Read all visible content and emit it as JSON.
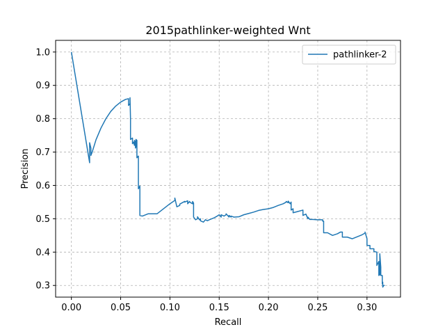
{
  "chart_data": {
    "type": "line",
    "title": "2015pathlinker-weighted Wnt",
    "xlabel": "Recall",
    "ylabel": "Precision",
    "xlim": [
      -0.016,
      0.334
    ],
    "ylim": [
      0.265,
      1.035
    ],
    "xticks": [
      0.0,
      0.05,
      0.1,
      0.15,
      0.2,
      0.25,
      0.3
    ],
    "xtick_labels": [
      "0.00",
      "0.05",
      "0.10",
      "0.15",
      "0.20",
      "0.25",
      "0.30"
    ],
    "yticks": [
      0.3,
      0.4,
      0.5,
      0.6,
      0.7,
      0.8,
      0.9,
      1.0
    ],
    "ytick_labels": [
      "0.3",
      "0.4",
      "0.5",
      "0.6",
      "0.7",
      "0.8",
      "0.9",
      "1.0"
    ],
    "grid": true,
    "legend_position": "top-right",
    "series": [
      {
        "name": "pathlinker-2",
        "color": "#1f77b4",
        "x": [
          0.0,
          0.0185,
          0.0185,
          0.0198,
          0.0198,
          0.0211,
          0.025,
          0.03,
          0.035,
          0.04,
          0.045,
          0.05,
          0.055,
          0.058,
          0.058,
          0.0595,
          0.0595,
          0.06,
          0.06,
          0.062,
          0.062,
          0.063,
          0.064,
          0.064,
          0.065,
          0.065,
          0.0655,
          0.0655,
          0.0665,
          0.0665,
          0.068,
          0.068,
          0.0695,
          0.0695,
          0.072,
          0.078,
          0.087,
          0.1,
          0.105,
          0.105,
          0.107,
          0.11,
          0.11,
          0.115,
          0.115,
          0.118,
          0.118,
          0.12,
          0.12,
          0.123,
          0.123,
          0.124,
          0.124,
          0.126,
          0.128,
          0.128,
          0.13,
          0.131,
          0.131,
          0.134,
          0.136,
          0.138,
          0.14,
          0.145,
          0.148,
          0.15,
          0.152,
          0.152,
          0.155,
          0.157,
          0.157,
          0.16,
          0.16,
          0.162,
          0.162,
          0.165,
          0.17,
          0.175,
          0.18,
          0.185,
          0.19,
          0.195,
          0.2,
          0.205,
          0.21,
          0.215,
          0.218,
          0.218,
          0.22,
          0.22,
          0.222,
          0.223,
          0.223,
          0.225,
          0.225,
          0.23,
          0.235,
          0.235,
          0.238,
          0.24,
          0.24,
          0.242,
          0.245,
          0.25,
          0.255,
          0.255,
          0.256,
          0.256,
          0.26,
          0.265,
          0.27,
          0.273,
          0.275,
          0.275,
          0.28,
          0.285,
          0.29,
          0.295,
          0.298,
          0.298,
          0.3,
          0.3,
          0.303,
          0.303,
          0.307,
          0.307,
          0.31,
          0.31,
          0.312,
          0.312,
          0.313,
          0.313,
          0.314,
          0.314,
          0.3155,
          0.3155,
          0.316,
          0.316,
          0.317,
          0.318
        ],
        "y": [
          1.0,
          0.668,
          0.728,
          0.712,
          0.69,
          0.7,
          0.737,
          0.772,
          0.8,
          0.822,
          0.838,
          0.85,
          0.858,
          0.86,
          0.84,
          0.845,
          0.863,
          0.8,
          0.738,
          0.742,
          0.725,
          0.73,
          0.72,
          0.735,
          0.73,
          0.712,
          0.715,
          0.738,
          0.735,
          0.683,
          0.688,
          0.59,
          0.598,
          0.51,
          0.508,
          0.515,
          0.515,
          0.545,
          0.555,
          0.562,
          0.536,
          0.54,
          0.544,
          0.552,
          0.55,
          0.554,
          0.545,
          0.552,
          0.55,
          0.545,
          0.552,
          0.547,
          0.505,
          0.497,
          0.5,
          0.506,
          0.497,
          0.5,
          0.494,
          0.49,
          0.497,
          0.494,
          0.497,
          0.503,
          0.508,
          0.512,
          0.505,
          0.512,
          0.508,
          0.512,
          0.515,
          0.505,
          0.51,
          0.505,
          0.508,
          0.505,
          0.506,
          0.512,
          0.516,
          0.52,
          0.525,
          0.528,
          0.53,
          0.534,
          0.54,
          0.545,
          0.55,
          0.552,
          0.548,
          0.553,
          0.545,
          0.55,
          0.526,
          0.53,
          0.518,
          0.522,
          0.526,
          0.51,
          0.514,
          0.5,
          0.505,
          0.498,
          0.498,
          0.497,
          0.497,
          0.493,
          0.493,
          0.458,
          0.458,
          0.45,
          0.455,
          0.46,
          0.46,
          0.445,
          0.445,
          0.44,
          0.446,
          0.452,
          0.457,
          0.46,
          0.44,
          0.42,
          0.42,
          0.41,
          0.41,
          0.402,
          0.4,
          0.36,
          0.372,
          0.33,
          0.332,
          0.395,
          0.355,
          0.33,
          0.33,
          0.305,
          0.31,
          0.295,
          0.3,
          0.3
        ]
      }
    ]
  }
}
